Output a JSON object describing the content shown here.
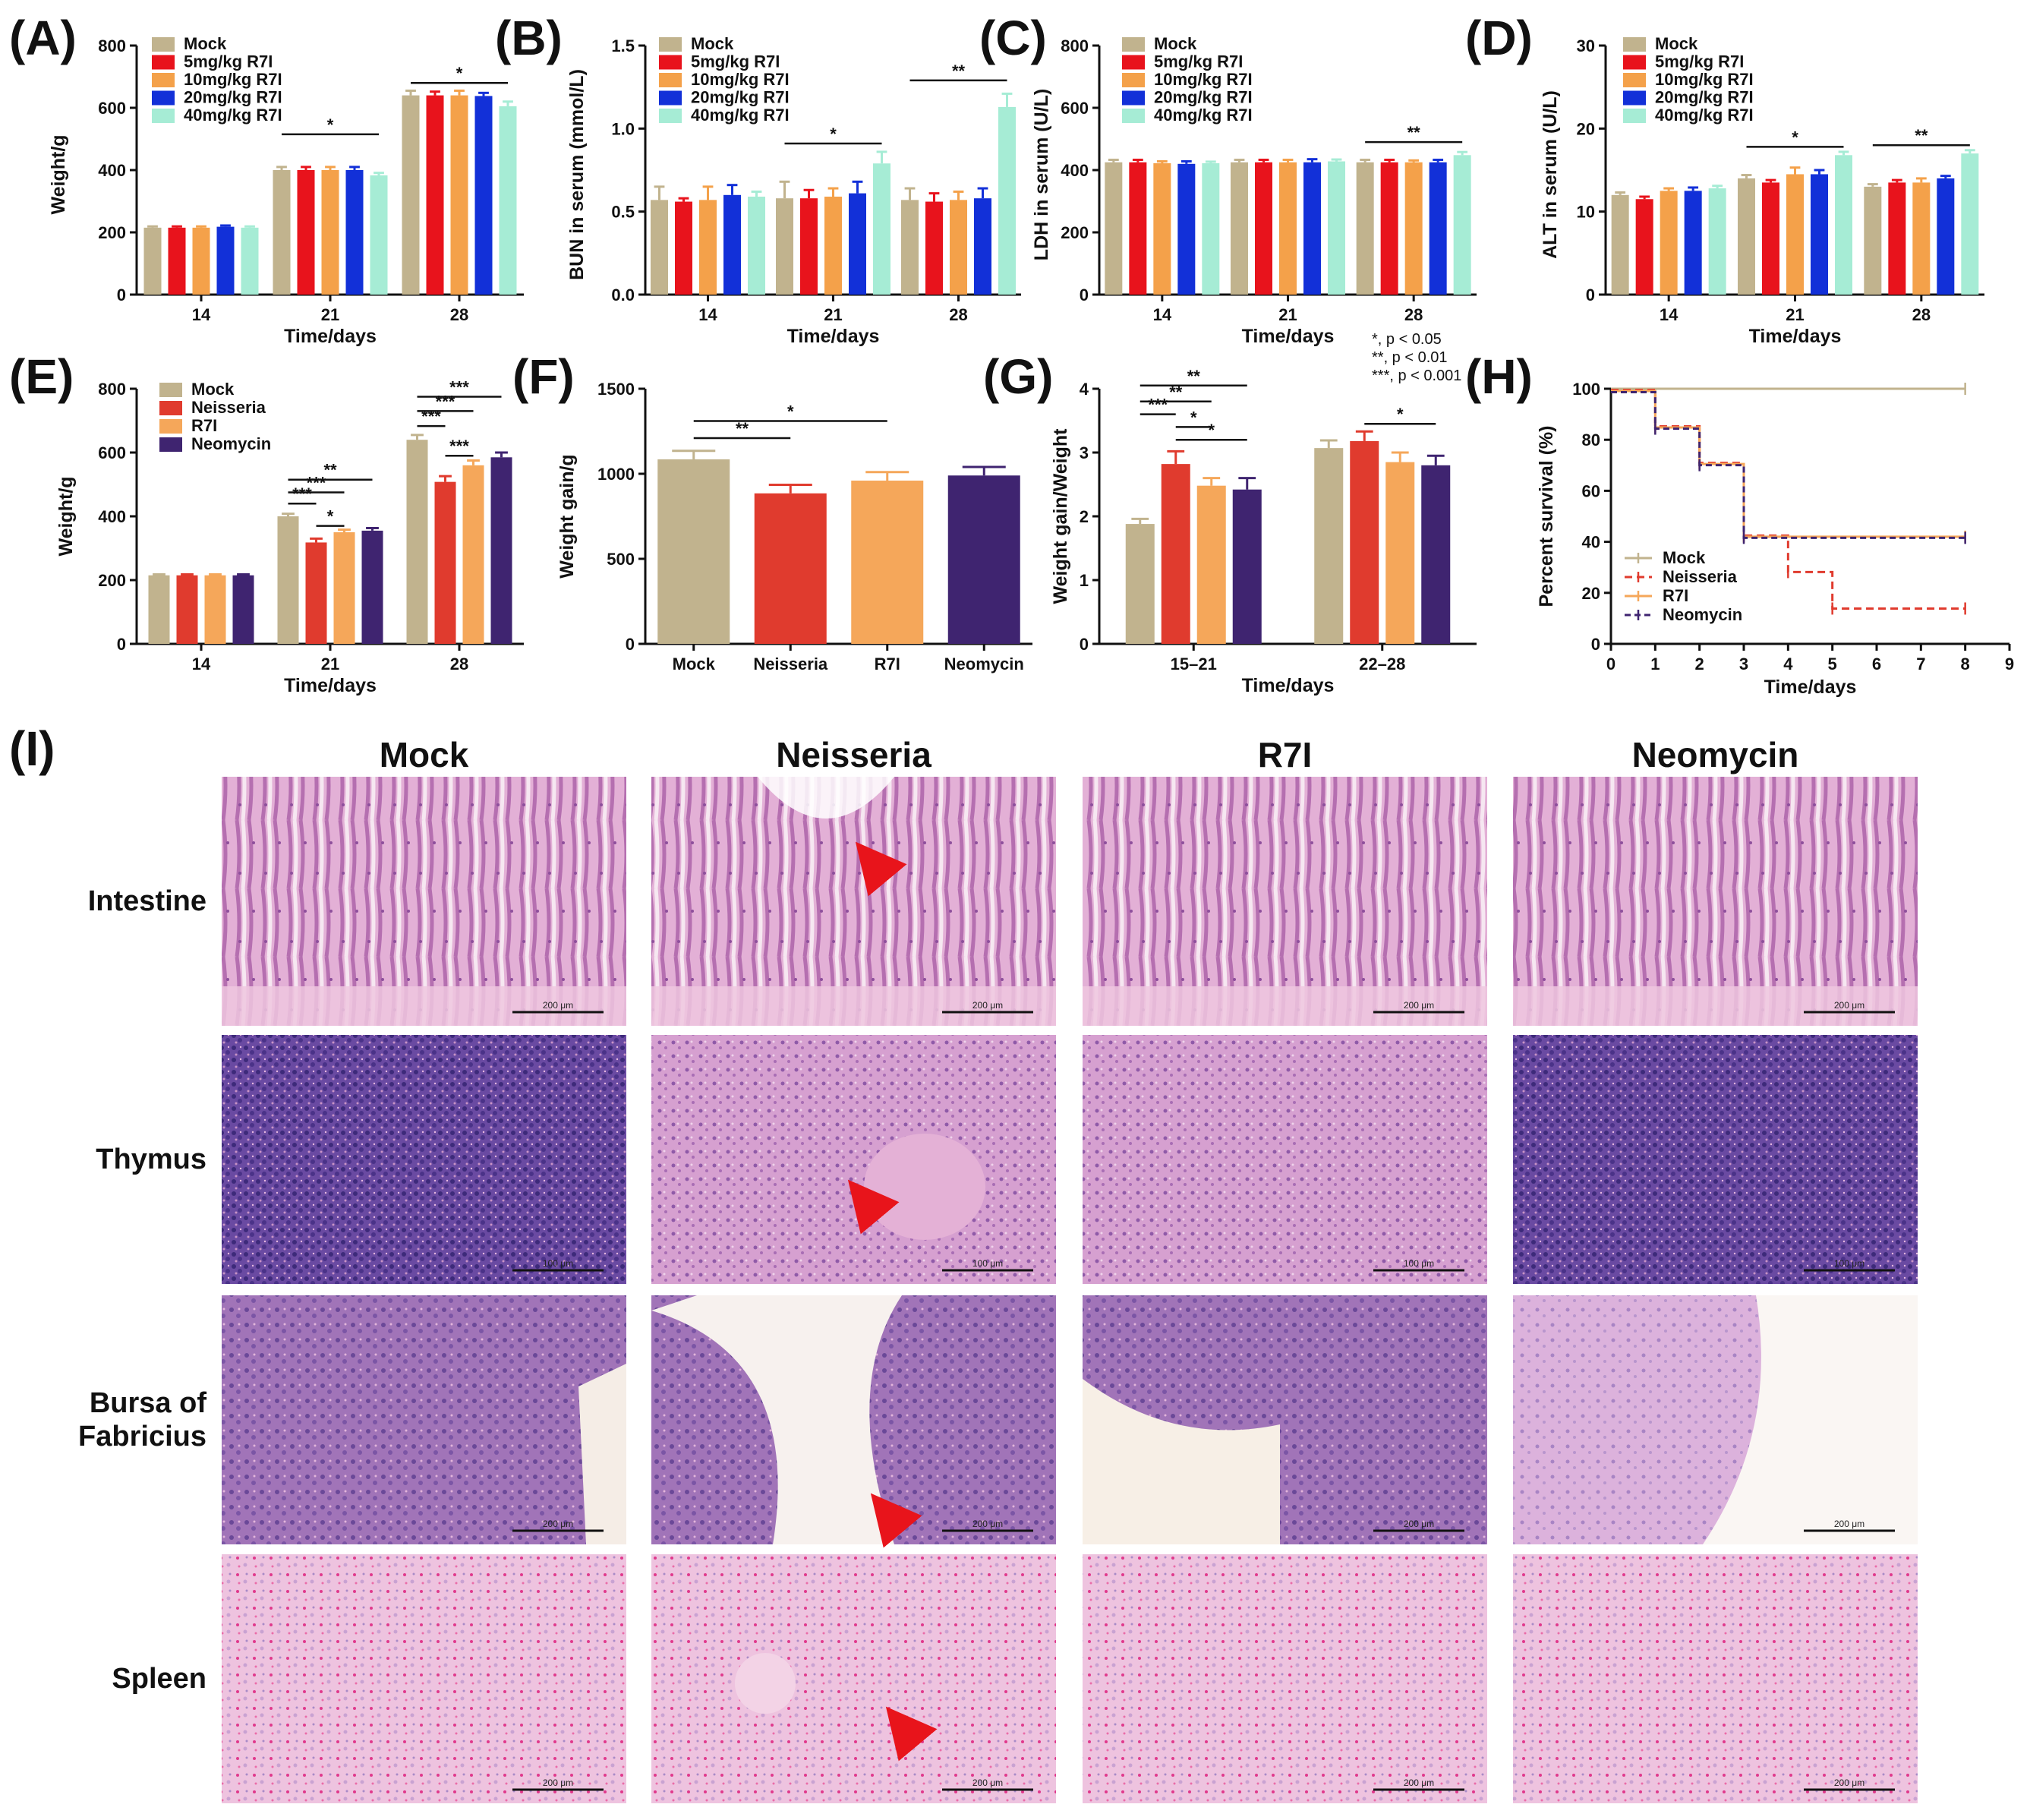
{
  "figure": {
    "colors": {
      "mock": "#c1b38e",
      "dose5": "#e8131c",
      "dose10": "#f4a14a",
      "dose20": "#1230d8",
      "dose40": "#a6ecd5",
      "neisseria": "#e03b2e",
      "r7i": "#f5a75a",
      "neomycin": "#3f2470"
    },
    "histology": {
      "columns": [
        "Mock",
        "Neisseria",
        "R7I",
        "Neomycin"
      ],
      "rows": [
        {
          "label_lines": [
            "Intestine"
          ],
          "scalebars": [
            "200 μm",
            "200 μm",
            "200 μm",
            "200 μm"
          ],
          "arrow_columns": [
            1
          ]
        },
        {
          "label_lines": [
            "Thymus"
          ],
          "scalebars": [
            "100 μm",
            "100 μm",
            "100 μm",
            "100 μm"
          ],
          "arrow_columns": [
            1
          ]
        },
        {
          "label_lines": [
            "Bursa of",
            "Fabricius"
          ],
          "scalebars": [
            "200 μm",
            "200 μm",
            "200 μm",
            "200 μm"
          ],
          "arrow_columns": [
            1
          ]
        },
        {
          "label_lines": [
            "Spleen"
          ],
          "scalebars": [
            "200 μm",
            "200 μm",
            "200 μm",
            "200 μm"
          ],
          "arrow_columns": [
            1
          ]
        }
      ]
    },
    "significance_note": [
      "*, p < 0.05",
      "**, p < 0.01",
      "***, p < 0.001"
    ]
  },
  "chart_data": [
    {
      "panel": "(A)",
      "type": "bar",
      "categories": [
        "14",
        "21",
        "28"
      ],
      "xlabel": "Time/days",
      "ylabel": "Weight/g",
      "ylim": [
        0,
        800
      ],
      "yticks": [
        0,
        200,
        400,
        600,
        800
      ],
      "legend": "top-left",
      "series": [
        {
          "name": "Mock",
          "color_key": "mock",
          "values": [
            215,
            400,
            640
          ],
          "errors": [
            4,
            10,
            15
          ]
        },
        {
          "name": "5mg/kg R7I",
          "color_key": "dose5",
          "values": [
            215,
            400,
            640
          ],
          "errors": [
            4,
            10,
            12
          ]
        },
        {
          "name": "10mg/kg R7I",
          "color_key": "dose10",
          "values": [
            215,
            400,
            640
          ],
          "errors": [
            4,
            10,
            15
          ]
        },
        {
          "name": "20mg/kg R7I",
          "color_key": "dose20",
          "values": [
            218,
            400,
            638
          ],
          "errors": [
            4,
            10,
            10
          ]
        },
        {
          "name": "40mg/kg R7I",
          "color_key": "dose40",
          "values": [
            215,
            383,
            605
          ],
          "errors": [
            4,
            8,
            15
          ]
        }
      ],
      "brackets": [
        {
          "cat": 1,
          "from": 0,
          "to": 4,
          "y": 515,
          "label": "*"
        },
        {
          "cat": 2,
          "from": 0,
          "to": 4,
          "y": 680,
          "label": "*"
        }
      ]
    },
    {
      "panel": "(B)",
      "type": "bar",
      "categories": [
        "14",
        "21",
        "28"
      ],
      "xlabel": "Time/days",
      "ylabel": "BUN in serum (mmol/L)",
      "ylim": [
        0,
        1.5
      ],
      "yticks": [
        0.0,
        0.5,
        1.0,
        1.5
      ],
      "legend": "top-left",
      "series": [
        {
          "name": "Mock",
          "color_key": "mock",
          "values": [
            0.57,
            0.58,
            0.57
          ],
          "errors": [
            0.08,
            0.1,
            0.07
          ]
        },
        {
          "name": "5mg/kg R7I",
          "color_key": "dose5",
          "values": [
            0.56,
            0.58,
            0.56
          ],
          "errors": [
            0.02,
            0.05,
            0.05
          ]
        },
        {
          "name": "10mg/kg R7I",
          "color_key": "dose10",
          "values": [
            0.57,
            0.59,
            0.57
          ],
          "errors": [
            0.08,
            0.05,
            0.05
          ]
        },
        {
          "name": "20mg/kg R7I",
          "color_key": "dose20",
          "values": [
            0.6,
            0.61,
            0.58
          ],
          "errors": [
            0.06,
            0.07,
            0.06
          ]
        },
        {
          "name": "40mg/kg R7I",
          "color_key": "dose40",
          "values": [
            0.59,
            0.79,
            1.13
          ],
          "errors": [
            0.03,
            0.07,
            0.08
          ]
        }
      ],
      "brackets": [
        {
          "cat": 1,
          "from": 0,
          "to": 4,
          "y": 0.91,
          "label": "*"
        },
        {
          "cat": 2,
          "from": 0,
          "to": 4,
          "y": 1.29,
          "label": "**"
        }
      ]
    },
    {
      "panel": "(C)",
      "type": "bar",
      "categories": [
        "14",
        "21",
        "28"
      ],
      "xlabel": "Time/days",
      "ylabel": "LDH in serum (U/L)",
      "ylim": [
        0,
        800
      ],
      "yticks": [
        0,
        200,
        400,
        600,
        800
      ],
      "legend": "top-left",
      "series": [
        {
          "name": "Mock",
          "color_key": "mock",
          "values": [
            425,
            425,
            425
          ],
          "errors": [
            8,
            8,
            8
          ]
        },
        {
          "name": "5mg/kg R7I",
          "color_key": "dose5",
          "values": [
            425,
            425,
            425
          ],
          "errors": [
            8,
            8,
            8
          ]
        },
        {
          "name": "10mg/kg R7I",
          "color_key": "dose10",
          "values": [
            422,
            425,
            425
          ],
          "errors": [
            6,
            8,
            6
          ]
        },
        {
          "name": "20mg/kg R7I",
          "color_key": "dose20",
          "values": [
            420,
            425,
            425
          ],
          "errors": [
            8,
            10,
            8
          ]
        },
        {
          "name": "40mg/kg R7I",
          "color_key": "dose40",
          "values": [
            422,
            428,
            448
          ],
          "errors": [
            5,
            6,
            10
          ]
        }
      ],
      "brackets": [
        {
          "cat": 2,
          "from": 0,
          "to": 4,
          "y": 490,
          "label": "**"
        }
      ]
    },
    {
      "panel": "(D)",
      "type": "bar",
      "categories": [
        "14",
        "21",
        "28"
      ],
      "xlabel": "Time/days",
      "ylabel": "ALT in serum (U/L)",
      "ylim": [
        0,
        30
      ],
      "yticks": [
        0,
        10,
        20,
        30
      ],
      "legend": "top-left",
      "series": [
        {
          "name": "Mock",
          "color_key": "mock",
          "values": [
            12,
            14,
            13
          ],
          "errors": [
            0.3,
            0.4,
            0.3
          ]
        },
        {
          "name": "5mg/kg R7I",
          "color_key": "dose5",
          "values": [
            11.5,
            13.5,
            13.5
          ],
          "errors": [
            0.3,
            0.3,
            0.3
          ]
        },
        {
          "name": "10mg/kg R7I",
          "color_key": "dose10",
          "values": [
            12.5,
            14.5,
            13.5
          ],
          "errors": [
            0.3,
            0.8,
            0.5
          ]
        },
        {
          "name": "20mg/kg R7I",
          "color_key": "dose20",
          "values": [
            12.5,
            14.5,
            14
          ],
          "errors": [
            0.4,
            0.5,
            0.3
          ]
        },
        {
          "name": "40mg/kg R7I",
          "color_key": "dose40",
          "values": [
            12.8,
            16.8,
            17
          ],
          "errors": [
            0.3,
            0.4,
            0.4
          ]
        }
      ],
      "brackets": [
        {
          "cat": 1,
          "from": 0,
          "to": 4,
          "y": 17.8,
          "label": "*"
        },
        {
          "cat": 2,
          "from": 0,
          "to": 4,
          "y": 18,
          "label": "**"
        }
      ]
    },
    {
      "panel": "(E)",
      "type": "bar",
      "categories": [
        "14",
        "21",
        "28"
      ],
      "xlabel": "Time/days",
      "ylabel": "Weight/g",
      "ylim": [
        0,
        800
      ],
      "yticks": [
        0,
        200,
        400,
        600,
        800
      ],
      "legend": "top-left",
      "series": [
        {
          "name": "Mock",
          "color_key": "mock",
          "values": [
            215,
            400,
            640
          ],
          "errors": [
            3,
            8,
            15
          ]
        },
        {
          "name": "Neisseria",
          "color_key": "neisseria",
          "values": [
            215,
            318,
            508
          ],
          "errors": [
            3,
            12,
            18
          ]
        },
        {
          "name": "R7I",
          "color_key": "r7i",
          "values": [
            215,
            350,
            560
          ],
          "errors": [
            3,
            8,
            15
          ]
        },
        {
          "name": "Neomycin",
          "color_key": "neomycin",
          "values": [
            215,
            355,
            585
          ],
          "errors": [
            3,
            8,
            15
          ]
        }
      ],
      "brackets": [
        {
          "cat": 1,
          "from": 0,
          "to": 3,
          "y": 515,
          "label": "**"
        },
        {
          "cat": 1,
          "from": 0,
          "to": 2,
          "y": 475,
          "label": "***"
        },
        {
          "cat": 1,
          "from": 0,
          "to": 1,
          "y": 440,
          "label": "***"
        },
        {
          "cat": 1,
          "from": 1,
          "to": 2,
          "y": 370,
          "label": "*"
        },
        {
          "cat": 2,
          "from": 0,
          "to": 3,
          "y": 775,
          "label": "***"
        },
        {
          "cat": 2,
          "from": 0,
          "to": 2,
          "y": 730,
          "label": "***"
        },
        {
          "cat": 2,
          "from": 0,
          "to": 1,
          "y": 683,
          "label": "***"
        },
        {
          "cat": 2,
          "from": 1,
          "to": 2,
          "y": 590,
          "label": "***"
        }
      ]
    },
    {
      "panel": "(F)",
      "type": "bar",
      "categories": [
        "Mock",
        "Neisseria",
        "R7I",
        "Neomycin"
      ],
      "xlabel": "",
      "ylabel": "Weight gain/g",
      "ylim": [
        0,
        1500
      ],
      "yticks": [
        0,
        500,
        1000,
        1500
      ],
      "series": [
        {
          "name": "",
          "color_keys": [
            "mock",
            "neisseria",
            "r7i",
            "neomycin"
          ],
          "values": [
            1085,
            885,
            960,
            990
          ],
          "errors": [
            50,
            50,
            50,
            50
          ]
        }
      ],
      "brackets": [
        {
          "from": 0,
          "to": 1,
          "y": 1210,
          "label": "**"
        },
        {
          "from": 0,
          "to": 2,
          "y": 1310,
          "label": "*"
        }
      ]
    },
    {
      "panel": "(G)",
      "type": "bar",
      "categories": [
        "15–21",
        "22–28"
      ],
      "xlabel": "Time/days",
      "ylabel": "Weight gain/Weight",
      "ylim": [
        0,
        4
      ],
      "yticks": [
        0,
        1,
        2,
        3,
        4
      ],
      "series": [
        {
          "name": "",
          "color_key": "mock",
          "values": [
            1.88,
            3.07
          ],
          "errors": [
            0.08,
            0.12
          ]
        },
        {
          "name": "",
          "color_key": "neisseria",
          "values": [
            2.82,
            3.18
          ],
          "errors": [
            0.2,
            0.15
          ]
        },
        {
          "name": "",
          "color_key": "r7i",
          "values": [
            2.48,
            2.85
          ],
          "errors": [
            0.12,
            0.15
          ]
        },
        {
          "name": "",
          "color_key": "neomycin",
          "values": [
            2.42,
            2.8
          ],
          "errors": [
            0.18,
            0.15
          ]
        }
      ],
      "brackets": [
        {
          "cat": 0,
          "from": 0,
          "to": 3,
          "y": 4.05,
          "label": "**"
        },
        {
          "cat": 0,
          "from": 0,
          "to": 2,
          "y": 3.8,
          "label": "**"
        },
        {
          "cat": 0,
          "from": 0,
          "to": 1,
          "y": 3.6,
          "label": "***"
        },
        {
          "cat": 0,
          "from": 1,
          "to": 2,
          "y": 3.4,
          "label": "*"
        },
        {
          "cat": 0,
          "from": 1,
          "to": 3,
          "y": 3.2,
          "label": "*"
        },
        {
          "cat": 1,
          "from": 1,
          "to": 3,
          "y": 3.45,
          "label": "*"
        }
      ]
    },
    {
      "panel": "(H)",
      "type": "line",
      "xlabel": "Time/days",
      "ylabel": "Percent survival (%)",
      "xlim": [
        0,
        9
      ],
      "xticks": [
        0,
        1,
        2,
        3,
        4,
        5,
        6,
        7,
        8,
        9
      ],
      "ylim": [
        0,
        100
      ],
      "yticks": [
        0,
        20,
        40,
        60,
        80,
        100
      ],
      "legend": "bottom-left",
      "series": [
        {
          "name": "Mock",
          "color_key": "mock",
          "dash": "",
          "steps": [
            [
              0,
              100
            ],
            [
              8,
              100
            ]
          ]
        },
        {
          "name": "Neisseria",
          "color_key": "neisseria",
          "dash": "10,6",
          "steps": [
            [
              0,
              100
            ],
            [
              1,
              85.7
            ],
            [
              2,
              71.4
            ],
            [
              3,
              42.9
            ],
            [
              4,
              28.6
            ],
            [
              5,
              14.3
            ],
            [
              8,
              14.3
            ]
          ]
        },
        {
          "name": "R7I",
          "color_key": "r7i",
          "dash": "",
          "steps": [
            [
              0,
              100
            ],
            [
              1,
              85.7
            ],
            [
              2,
              71.4
            ],
            [
              3,
              42.9
            ],
            [
              8,
              42.9
            ]
          ]
        },
        {
          "name": "Neomycin",
          "color_key": "neomycin",
          "dash": "8,5",
          "steps": [
            [
              0,
              100
            ],
            [
              1,
              85.7
            ],
            [
              2,
              71.4
            ],
            [
              3,
              42.9
            ],
            [
              8,
              42.9
            ]
          ]
        }
      ]
    }
  ]
}
